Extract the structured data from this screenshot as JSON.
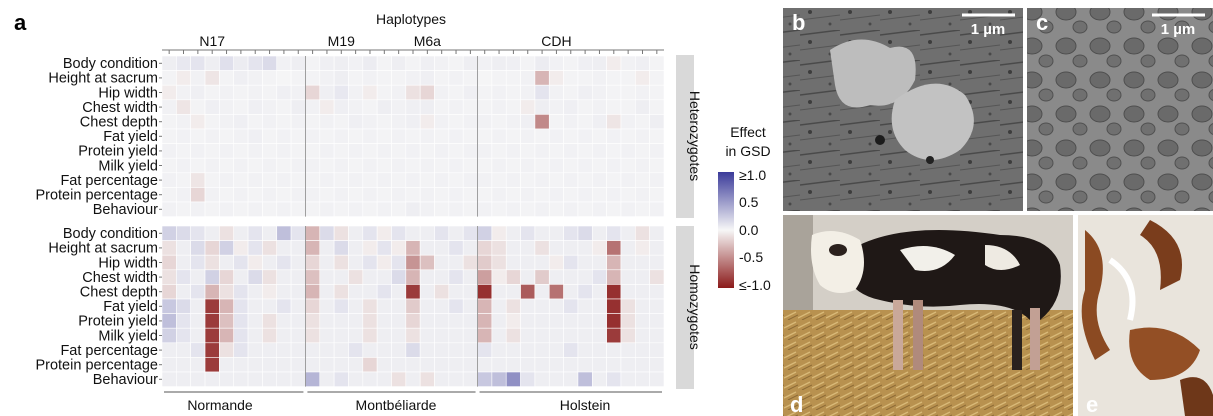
{
  "panel_labels": {
    "a": "a",
    "b": "b",
    "c": "c",
    "d": "d",
    "e": "e"
  },
  "haplotypes_title": "Haplotypes",
  "haplotype_labels": [
    "N17",
    "M19",
    "M6a",
    "CDH"
  ],
  "breeds": [
    "Normande",
    "Montbéliarde",
    "Holstein"
  ],
  "group_labels": [
    "Heterozygotes",
    "Homozygotes"
  ],
  "traits": [
    "Body condition",
    "Height at sacrum",
    "Hip width",
    "Chest width",
    "Chest depth",
    "Fat yield",
    "Protein yield",
    "Milk yield",
    "Fat percentage",
    "Protein percentage",
    "Behaviour"
  ],
  "legend": {
    "title_line1": "Effect",
    "title_line2": "in GSD",
    "ticks": [
      "≥1.0",
      "0.5",
      "0.0",
      "-0.5",
      "≤-1.0"
    ],
    "colors": {
      "high": "#3b3b9a",
      "mid": "#f7f7f7",
      "low": "#8b1a1a"
    }
  },
  "scale_bars": {
    "b": "1 µm",
    "c": "1 µm"
  },
  "chart_data": {
    "type": "heatmap",
    "title": "Haplotypes",
    "rows": [
      "Body condition",
      "Height at sacrum",
      "Hip width",
      "Chest width",
      "Chest depth",
      "Fat yield",
      "Protein yield",
      "Milk yield",
      "Fat percentage",
      "Protein percentage",
      "Behaviour"
    ],
    "n_columns": 35,
    "column_breeds": {
      "Normande": [
        0,
        9
      ],
      "Montbéliarde": [
        10,
        21
      ],
      "Holstein": [
        22,
        34
      ]
    },
    "haplotype_columns": {
      "N17": 3,
      "M19": 12,
      "M6a": 18,
      "CDH": 27
    },
    "value_range": [
      -1.0,
      1.0
    ],
    "heterozygotes": [
      [
        0.05,
        0.08,
        0.1,
        0.05,
        0.12,
        0.06,
        0.1,
        0.15,
        0.03,
        0.05,
        0.02,
        0.04,
        0.05,
        0.03,
        0.06,
        0.02,
        0.05,
        0.02,
        0.04,
        0.03,
        0.02,
        0.05,
        0.03,
        0.05,
        0.04,
        0.02,
        0.06,
        0.03,
        0.02,
        0.04,
        0.05,
        -0.05,
        0.03,
        0.04,
        0.02
      ],
      [
        0.02,
        -0.05,
        0.03,
        -0.08,
        0.02,
        0.04,
        0.03,
        0.02,
        0.01,
        0.02,
        0.02,
        0.03,
        0.05,
        0.02,
        0.03,
        0.02,
        0.02,
        0.03,
        0.04,
        0.02,
        0.03,
        0.02,
        0.01,
        0.02,
        0.02,
        0.03,
        -0.3,
        -0.05,
        0.02,
        0.02,
        0.03,
        0.02,
        0.02,
        -0.05,
        0.02
      ],
      [
        -0.05,
        0.03,
        0.04,
        0.02,
        0.03,
        0.02,
        0.03,
        0.02,
        0.04,
        0.03,
        -0.15,
        0.04,
        0.08,
        0.03,
        -0.05,
        0.02,
        0.03,
        -0.1,
        -0.15,
        0.03,
        0.02,
        0.04,
        0.02,
        0.03,
        0.02,
        0.03,
        0.1,
        0.03,
        0.02,
        0.04,
        0.03,
        0.02,
        0.02,
        0.03,
        0.02
      ],
      [
        0.03,
        -0.08,
        0.02,
        0.04,
        0.03,
        0.02,
        0.04,
        0.03,
        0.02,
        0.05,
        0.03,
        -0.05,
        0.04,
        0.03,
        0.02,
        0.05,
        0.03,
        0.04,
        0.05,
        0.02,
        0.03,
        0.02,
        0.02,
        0.03,
        0.02,
        -0.05,
        0.05,
        0.03,
        0.04,
        0.02,
        0.03,
        0.02,
        0.02,
        0.05,
        0.02
      ],
      [
        0.02,
        0.03,
        -0.05,
        0.02,
        0.03,
        0.04,
        0.02,
        0.03,
        0.02,
        0.03,
        0.02,
        0.03,
        0.02,
        0.04,
        0.03,
        0.02,
        0.03,
        0.04,
        -0.05,
        0.03,
        0.02,
        0.03,
        0.03,
        0.02,
        0.03,
        0.04,
        -0.5,
        0.02,
        0.03,
        0.02,
        0.04,
        -0.08,
        0.03,
        0.02,
        0.05
      ],
      [
        0.02,
        0.03,
        0.02,
        0.03,
        0.02,
        0.03,
        0.04,
        0.02,
        0.03,
        0.02,
        0.03,
        0.02,
        0.03,
        0.02,
        0.03,
        0.02,
        0.03,
        0.02,
        0.03,
        0.02,
        0.03,
        0.02,
        0.02,
        0.03,
        0.02,
        0.03,
        0.02,
        0.03,
        0.02,
        0.03,
        0.02,
        0.03,
        0.02,
        0.03,
        0.02
      ],
      [
        0.03,
        0.02,
        0.03,
        0.02,
        0.03,
        0.02,
        0.03,
        0.02,
        0.03,
        0.02,
        0.02,
        0.03,
        0.02,
        0.03,
        0.02,
        0.03,
        0.02,
        0.03,
        0.02,
        0.03,
        0.02,
        0.03,
        0.03,
        0.02,
        0.03,
        0.02,
        0.03,
        0.02,
        0.03,
        0.02,
        0.03,
        0.02,
        0.03,
        0.02,
        0.03
      ],
      [
        0.02,
        0.03,
        0.02,
        0.03,
        0.02,
        0.03,
        0.02,
        0.03,
        0.02,
        0.03,
        0.03,
        0.02,
        0.03,
        0.02,
        0.03,
        0.02,
        0.03,
        0.02,
        0.03,
        0.02,
        0.03,
        0.02,
        0.02,
        0.03,
        0.02,
        0.03,
        0.02,
        0.03,
        0.02,
        0.03,
        0.02,
        0.03,
        0.02,
        0.03,
        0.02
      ],
      [
        0.03,
        0.02,
        -0.08,
        0.02,
        0.03,
        0.02,
        0.03,
        0.02,
        0.03,
        0.02,
        0.02,
        0.03,
        0.02,
        0.03,
        0.02,
        0.03,
        0.02,
        0.03,
        0.02,
        0.03,
        0.02,
        0.03,
        0.03,
        0.02,
        0.03,
        0.02,
        0.03,
        0.02,
        0.03,
        0.02,
        0.03,
        0.02,
        0.03,
        0.02,
        0.03
      ],
      [
        0.02,
        0.03,
        -0.15,
        0.03,
        0.02,
        0.03,
        0.02,
        0.03,
        0.02,
        0.03,
        0.03,
        0.02,
        0.03,
        0.02,
        0.03,
        0.02,
        0.03,
        0.02,
        0.03,
        0.02,
        0.03,
        0.02,
        0.02,
        0.03,
        0.02,
        0.03,
        0.02,
        0.03,
        0.02,
        0.03,
        0.02,
        0.03,
        0.02,
        0.03,
        0.02
      ],
      [
        0.03,
        0.02,
        0.03,
        0.02,
        0.03,
        0.02,
        0.03,
        0.02,
        0.03,
        0.02,
        0.02,
        0.03,
        0.02,
        0.03,
        0.02,
        0.03,
        0.02,
        0.05,
        0.03,
        0.02,
        0.03,
        0.02,
        0.03,
        0.02,
        0.03,
        0.02,
        0.03,
        0.02,
        0.03,
        0.02,
        0.03,
        0.02,
        0.03,
        0.02,
        0.03
      ]
    ],
    "homozygotes": [
      [
        0.2,
        0.15,
        0.1,
        0.05,
        -0.1,
        0.05,
        0.1,
        0.05,
        0.3,
        0.1,
        -0.3,
        0.15,
        -0.1,
        0.05,
        0.1,
        -0.05,
        0.1,
        0.05,
        0.05,
        0.1,
        0.05,
        0.1,
        0.2,
        -0.05,
        0.05,
        0.1,
        0.05,
        0.05,
        0.1,
        0.15,
        0.05,
        0.1,
        0.05,
        -0.1,
        0.05
      ],
      [
        -0.1,
        0.05,
        0.15,
        -0.15,
        0.2,
        -0.05,
        0.1,
        -0.1,
        0.05,
        0.05,
        -0.3,
        0.05,
        0.15,
        0.05,
        -0.05,
        0.1,
        -0.05,
        -0.3,
        0.05,
        0.05,
        0.1,
        0.05,
        -0.15,
        -0.1,
        0.05,
        0.05,
        -0.1,
        0.05,
        0.05,
        0.05,
        -0.05,
        -0.6,
        0.05,
        -0.05,
        0.05
      ],
      [
        -0.15,
        0.05,
        0.1,
        -0.1,
        0.05,
        0.1,
        -0.05,
        0.05,
        0.1,
        0.05,
        -0.15,
        0.05,
        -0.1,
        0.05,
        0.1,
        -0.05,
        0.1,
        -0.45,
        -0.25,
        0.05,
        0.05,
        -0.1,
        -0.2,
        -0.1,
        0.05,
        0.05,
        0.05,
        -0.05,
        0.1,
        0.05,
        0.05,
        -0.3,
        0.05,
        0.05,
        0.05
      ],
      [
        -0.1,
        0.1,
        0.05,
        0.2,
        -0.15,
        0.05,
        0.15,
        -0.1,
        0.05,
        0.05,
        -0.25,
        0.05,
        0.05,
        -0.1,
        0.05,
        0.05,
        0.15,
        -0.3,
        0.05,
        0.05,
        0.1,
        0.05,
        -0.4,
        -0.05,
        -0.15,
        0.05,
        -0.2,
        0.05,
        0.05,
        0.05,
        0.1,
        -0.3,
        0.05,
        0.05,
        -0.1
      ],
      [
        -0.15,
        0.05,
        0.1,
        -0.3,
        -0.1,
        0.1,
        0.05,
        -0.05,
        0.05,
        0.05,
        -0.3,
        0.05,
        -0.1,
        0.05,
        0.05,
        0.1,
        0.05,
        -0.85,
        0.05,
        -0.1,
        0.05,
        0.05,
        -0.9,
        0.05,
        0.05,
        -0.7,
        0.05,
        -0.6,
        0.05,
        0.1,
        0.05,
        -0.9,
        0.05,
        0.05,
        0.05
      ],
      [
        0.25,
        0.15,
        0.05,
        -0.85,
        -0.3,
        0.1,
        0.05,
        0.05,
        0.1,
        0.05,
        -0.15,
        0.05,
        0.1,
        0.05,
        -0.1,
        0.05,
        0.05,
        -0.2,
        0.05,
        0.05,
        0.1,
        0.05,
        -0.3,
        0.05,
        -0.1,
        0.05,
        0.05,
        0.05,
        0.1,
        0.05,
        0.05,
        -0.9,
        -0.1,
        0.05,
        0.05
      ],
      [
        0.3,
        0.1,
        0.05,
        -0.85,
        -0.25,
        0.1,
        0.05,
        -0.1,
        0.05,
        0.05,
        -0.1,
        0.05,
        0.05,
        0.05,
        -0.1,
        0.05,
        0.05,
        -0.15,
        0.05,
        0.05,
        0.05,
        0.05,
        -0.3,
        0.05,
        -0.05,
        0.05,
        0.05,
        0.05,
        0.05,
        0.05,
        0.05,
        -0.9,
        -0.1,
        0.05,
        0.05
      ],
      [
        0.2,
        0.1,
        0.05,
        -0.85,
        -0.3,
        0.1,
        0.05,
        -0.1,
        0.05,
        0.05,
        -0.1,
        0.05,
        0.05,
        0.05,
        -0.1,
        0.05,
        0.05,
        -0.1,
        0.05,
        0.05,
        0.05,
        0.05,
        -0.3,
        0.05,
        -0.1,
        0.05,
        0.05,
        0.05,
        0.05,
        0.05,
        0.05,
        -0.85,
        -0.1,
        0.05,
        0.05
      ],
      [
        0.05,
        0.05,
        0.1,
        -0.85,
        -0.1,
        0.1,
        0.05,
        0.05,
        0.05,
        0.05,
        0.05,
        0.05,
        0.05,
        0.1,
        0.05,
        0.05,
        0.05,
        0.15,
        0.05,
        0.05,
        0.05,
        0.05,
        0.1,
        0.05,
        0.05,
        0.05,
        0.05,
        0.05,
        0.1,
        0.05,
        0.05,
        0.05,
        0.05,
        0.05,
        0.05
      ],
      [
        0.05,
        0.05,
        0.05,
        -0.85,
        0.05,
        0.05,
        0.05,
        0.05,
        0.05,
        0.05,
        0.05,
        0.05,
        0.05,
        0.05,
        -0.15,
        0.05,
        0.05,
        0.05,
        0.05,
        0.05,
        0.05,
        0.05,
        0.05,
        0.05,
        0.05,
        0.05,
        0.05,
        0.05,
        0.05,
        0.05,
        0.05,
        0.05,
        0.05,
        0.05,
        0.05
      ],
      [
        0.05,
        0.05,
        0.05,
        0.05,
        0.05,
        0.05,
        0.05,
        0.05,
        0.05,
        0.05,
        0.35,
        0.05,
        0.1,
        0.05,
        0.05,
        0.05,
        -0.1,
        0.05,
        -0.1,
        0.05,
        0.05,
        0.05,
        0.25,
        0.3,
        0.55,
        0.1,
        0.05,
        0.05,
        0.05,
        0.3,
        0.05,
        0.1,
        0.05,
        0.05,
        0.05
      ]
    ]
  }
}
